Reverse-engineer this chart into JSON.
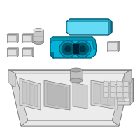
{
  "bg_color": "#ffffff",
  "line_color": "#7a7a7a",
  "line_thin": "#999999",
  "highlight_color": "#00b4d8",
  "highlight_mid": "#0096b4",
  "highlight_dark": "#006f8a",
  "highlight_outline": "#005570",
  "gray_fill": "#e0e0e0",
  "gray_mid": "#c8c8c8",
  "gray_dark": "#aaaaaa",
  "gray_outline": "#777777",
  "figsize": [
    2.0,
    2.0
  ],
  "dpi": 100
}
